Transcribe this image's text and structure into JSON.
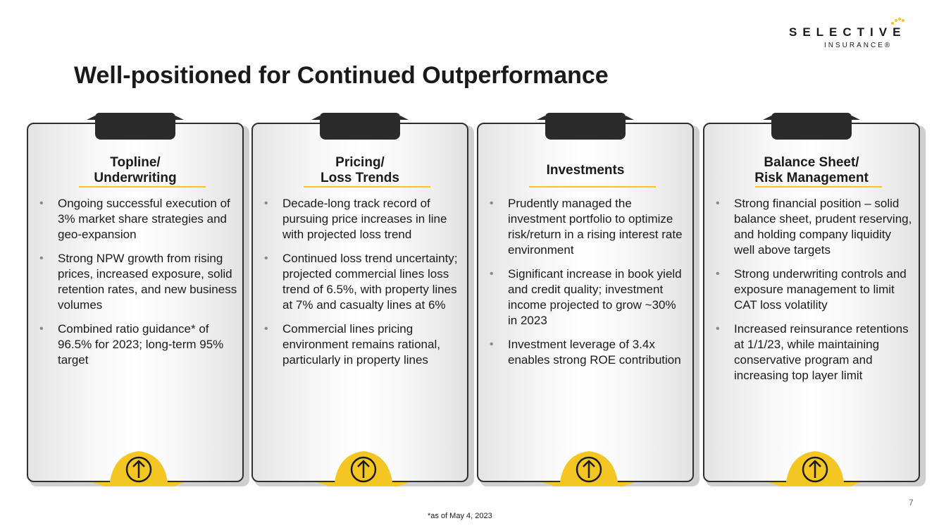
{
  "logo": {
    "wordmark": "SELECTIVE",
    "tagline": "INSURANCE®",
    "dot_color": "#f3c623"
  },
  "page": {
    "title": "Well-positioned for Continued Outperformance",
    "page_number": "7",
    "footnote": "*as of May 4, 2023"
  },
  "colors": {
    "accent_yellow": "#f3c623",
    "dark": "#2b2b2b"
  },
  "cards": [
    {
      "title": "Topline/\nUnderwriting",
      "bullets": [
        "Ongoing successful execution of 3% market share strategies and geo-expansion",
        "Strong NPW growth from rising prices, increased exposure, solid retention rates, and new business volumes",
        "Combined ratio guidance* of 96.5% for 2023; long-term 95% target"
      ],
      "icon": "arrow-up-circle-icon"
    },
    {
      "title": "Pricing/\nLoss Trends",
      "bullets": [
        "Decade-long track record of pursuing price increases in line with  projected loss trend",
        "Continued loss trend uncertainty; projected commercial lines loss trend of 6.5%, with property lines at 7% and casualty lines at 6%",
        "Commercial lines pricing environment remains rational, particularly in property lines"
      ],
      "icon": "arrow-up-circle-icon"
    },
    {
      "title": "Investments",
      "bullets": [
        "Prudently managed the investment portfolio to optimize risk/return in a rising interest rate environment",
        "Significant increase in book yield and credit quality; investment income projected to grow ~30% in 2023",
        "Investment leverage of 3.4x enables strong ROE contribution"
      ],
      "icon": "arrow-up-circle-icon"
    },
    {
      "title": "Balance Sheet/\nRisk Management",
      "bullets": [
        "Strong financial position – solid balance sheet, prudent reserving, and holding company liquidity well above targets",
        "Strong underwriting controls and exposure management to limit CAT loss volatility",
        "Increased reinsurance retentions at 1/1/23, while maintaining conservative program and increasing top layer limit"
      ],
      "icon": "arrow-up-circle-icon"
    }
  ]
}
